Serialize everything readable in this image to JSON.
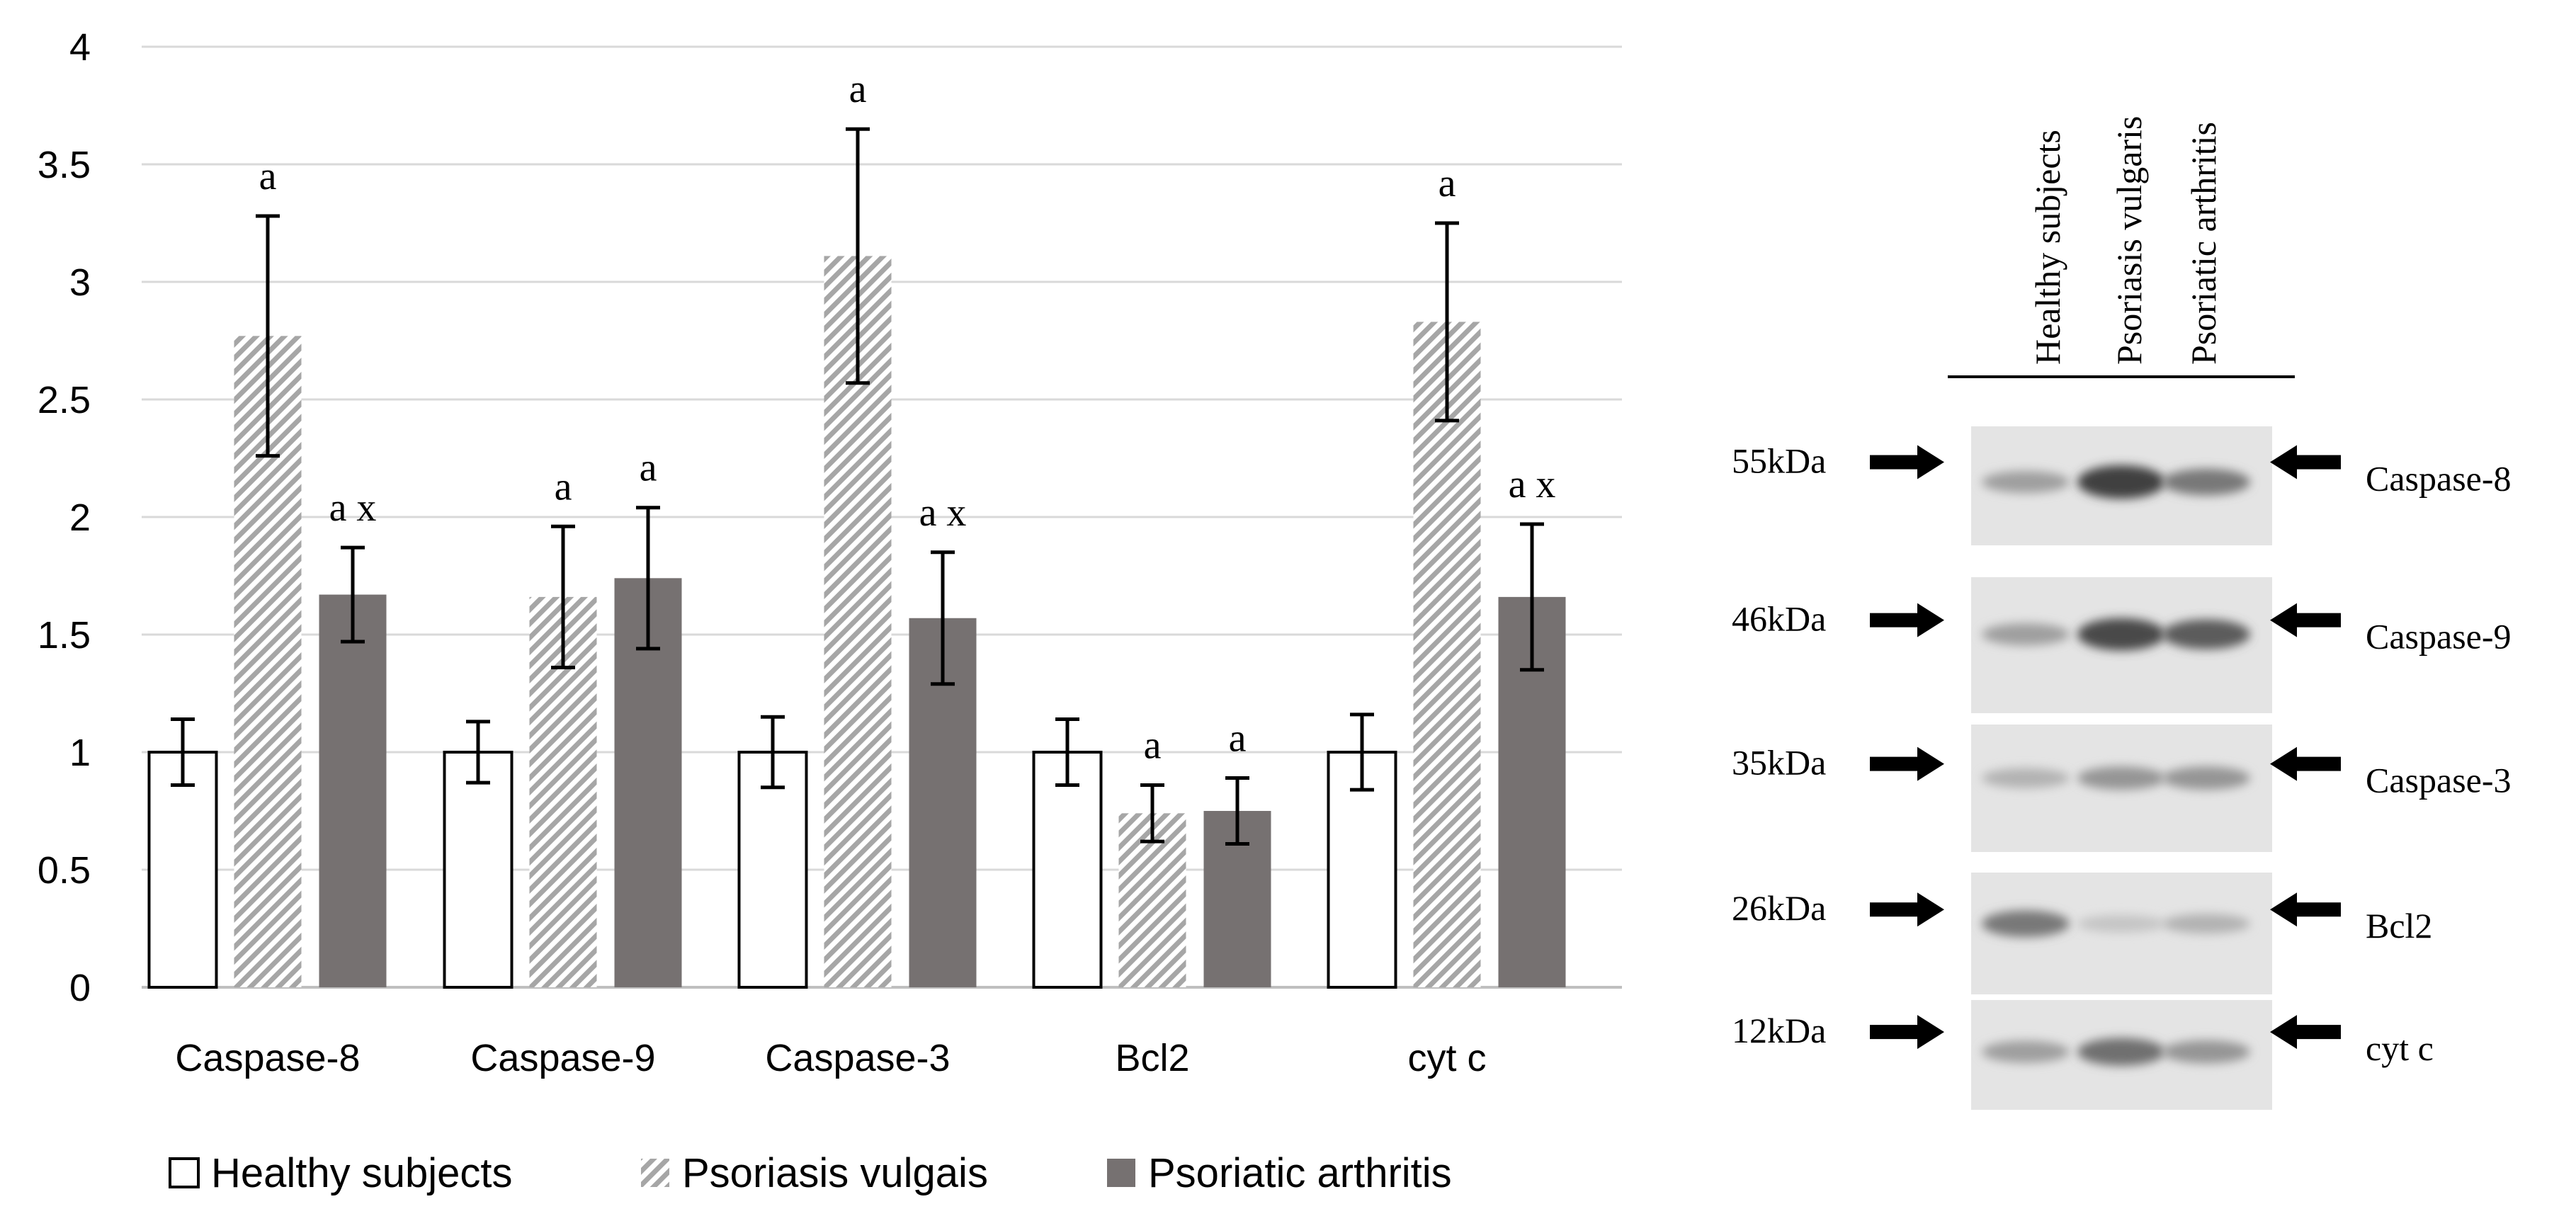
{
  "chart_data": {
    "type": "bar",
    "title": "",
    "xlabel": "",
    "ylabel": "",
    "ylim": [
      0,
      4
    ],
    "yticks": [
      "0",
      "0.5",
      "1",
      "1.5",
      "2",
      "2.5",
      "3",
      "3.5",
      "4"
    ],
    "grid": true,
    "legend_position": "bottom",
    "categories": [
      "Caspase-8",
      "Caspase-9",
      "Caspase-3",
      "Bcl2",
      "cyt c"
    ],
    "series": [
      {
        "name": "Healthy subjects",
        "pattern": "white",
        "values": [
          1.0,
          1.0,
          1.0,
          1.0,
          1.0
        ],
        "errors": [
          0.14,
          0.13,
          0.15,
          0.14,
          0.16
        ],
        "annotations": [
          "",
          "",
          "",
          "",
          ""
        ]
      },
      {
        "name": "Psoriasis vulgais",
        "pattern": "hatched",
        "values": [
          2.77,
          1.66,
          3.11,
          0.74,
          2.83
        ],
        "errors": [
          0.51,
          0.3,
          0.54,
          0.12,
          0.42
        ],
        "annotations": [
          "a",
          "a",
          "a",
          "a",
          "a"
        ]
      },
      {
        "name": "Psoriatic arthritis",
        "pattern": "gray",
        "values": [
          1.67,
          1.74,
          1.57,
          0.75,
          1.66
        ],
        "errors": [
          0.2,
          0.3,
          0.28,
          0.14,
          0.31
        ],
        "annotations": [
          "a x",
          "a",
          "a x",
          "a",
          "a x"
        ]
      }
    ],
    "colors": {
      "gray": "#767171",
      "hatch": "#a6a6a6",
      "grid": "#d9d9d9",
      "outline": "#000000"
    }
  },
  "western_blot": {
    "lanes": [
      "Healthy subjects",
      "Psoriasis vulgaris",
      "Psoriatic arthritis"
    ],
    "rows": [
      {
        "kda": "55kDa",
        "protein": "Caspase-8",
        "bands": [
          0.35,
          0.85,
          0.55
        ]
      },
      {
        "kda": "46kDa",
        "protein": "Caspase-9",
        "bands": [
          0.35,
          0.8,
          0.7
        ]
      },
      {
        "kda": "35kDa",
        "protein": "Caspase-3",
        "bands": [
          0.25,
          0.4,
          0.4
        ]
      },
      {
        "kda": "26kDa",
        "protein": "Bcl2",
        "bands": [
          0.55,
          0.15,
          0.25
        ]
      },
      {
        "kda": "12kDa",
        "protein": "cyt c",
        "bands": [
          0.35,
          0.6,
          0.4
        ]
      }
    ]
  }
}
